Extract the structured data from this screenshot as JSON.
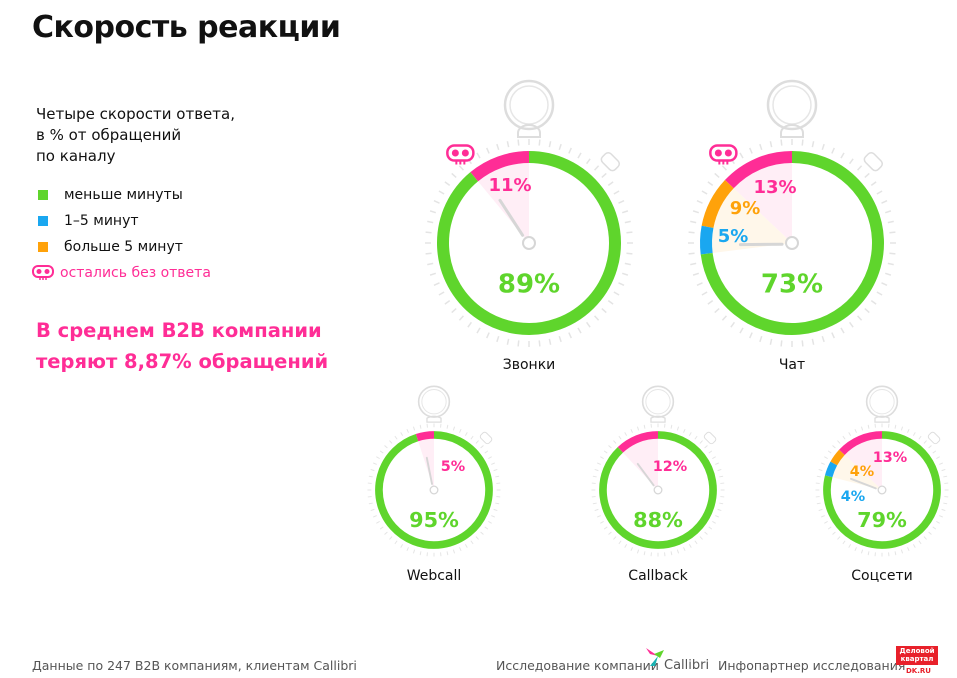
{
  "title": "Скорость реакции",
  "subtitle": [
    "Четыре скорости ответа,",
    "в % от обращений",
    "по каналу"
  ],
  "legend": [
    {
      "label": "меньше минуты",
      "color": "#5fd52c",
      "icon": "square"
    },
    {
      "label": "1–5 минут",
      "color": "#1aa7f0",
      "icon": "square"
    },
    {
      "label": "больше 5 минут",
      "color": "#ffa20a",
      "icon": "square"
    },
    {
      "label": "остались без ответа",
      "color": "#ff2d96",
      "icon": "skull-icon"
    }
  ],
  "callout": [
    "В среднем B2B компании",
    "теряют 8,87% обращений"
  ],
  "chart_data": {
    "type": "pie",
    "style": "stopwatch rings",
    "segment_order": [
      "остались без ответа",
      "больше 5 минут",
      "1–5 минут",
      "меньше минуты"
    ],
    "charts": [
      {
        "name": "Звонки",
        "size": "large",
        "values": {
          "unanswered": 11,
          "over5": 0,
          "m1to5": 0,
          "under1": 89
        },
        "labels": {
          "unanswered": "11%",
          "under1": "89%"
        }
      },
      {
        "name": "Чат",
        "size": "large",
        "values": {
          "unanswered": 13,
          "over5": 9,
          "m1to5": 5,
          "under1": 73
        },
        "labels": {
          "unanswered": "13%",
          "over5": "9%",
          "m1to5": "5%",
          "under1": "73%"
        }
      },
      {
        "name": "Webcall",
        "size": "small",
        "values": {
          "unanswered": 5,
          "over5": 0,
          "m1to5": 0,
          "under1": 95
        },
        "labels": {
          "unanswered": "5%",
          "under1": "95%"
        }
      },
      {
        "name": "Callback",
        "size": "small",
        "values": {
          "unanswered": 12,
          "over5": 0,
          "m1to5": 0,
          "under1": 88
        },
        "labels": {
          "unanswered": "12%",
          "under1": "88%"
        }
      },
      {
        "name": "Соцсети",
        "size": "small",
        "values": {
          "unanswered": 13,
          "over5": 4,
          "m1to5": 4,
          "under1": 79
        },
        "labels": {
          "unanswered": "13%",
          "over5": "4%",
          "m1to5": "4%",
          "under1": "79%"
        }
      }
    ]
  },
  "footer": {
    "source": "Данные по 247 B2B компаниям, клиентам Callibri",
    "research": "Исследование компании",
    "brand": "Callibri",
    "partner": "Инфопартнер исследования",
    "partner_logo": "Деловой квартал DK.RU"
  }
}
